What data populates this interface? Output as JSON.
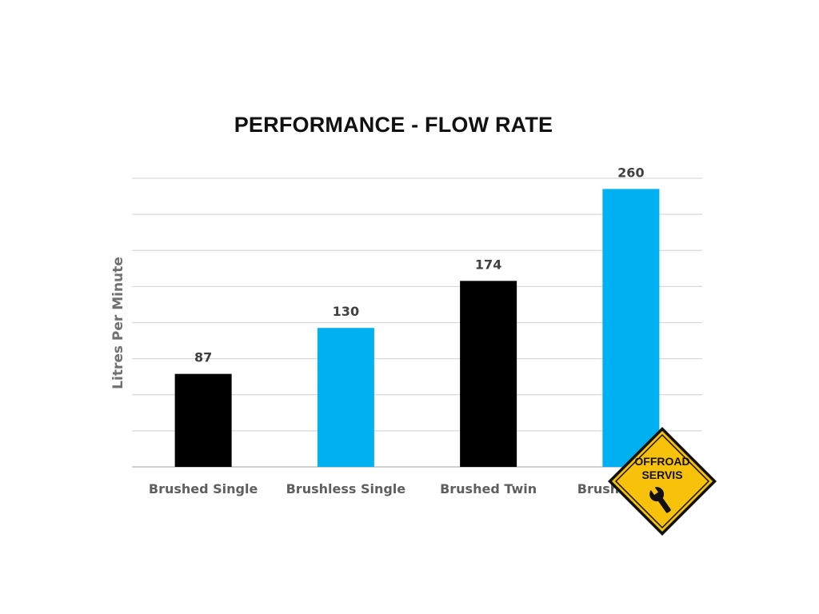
{
  "chart_data": {
    "type": "bar",
    "title": "PERFORMANCE - FLOW RATE",
    "xlabel": "",
    "ylabel": "Litres Per Minute",
    "categories": [
      "Brushed Single",
      "Brushless Single",
      "Brushed Twin",
      "Brushless Twin"
    ],
    "values": [
      87,
      130,
      174,
      260
    ],
    "value_labels": [
      "87",
      "130",
      "174",
      "260"
    ],
    "bar_colors": [
      "#000000",
      "#00b0f0",
      "#000000",
      "#00b0f0"
    ],
    "ylim": [
      0,
      270
    ],
    "grid": true,
    "legend": "none"
  },
  "logo": {
    "line1": "OFFROAD",
    "line2": "SERVIS",
    "icon": "wrench-icon",
    "colors": {
      "fill": "#f9c20a",
      "border": "#111111"
    }
  }
}
